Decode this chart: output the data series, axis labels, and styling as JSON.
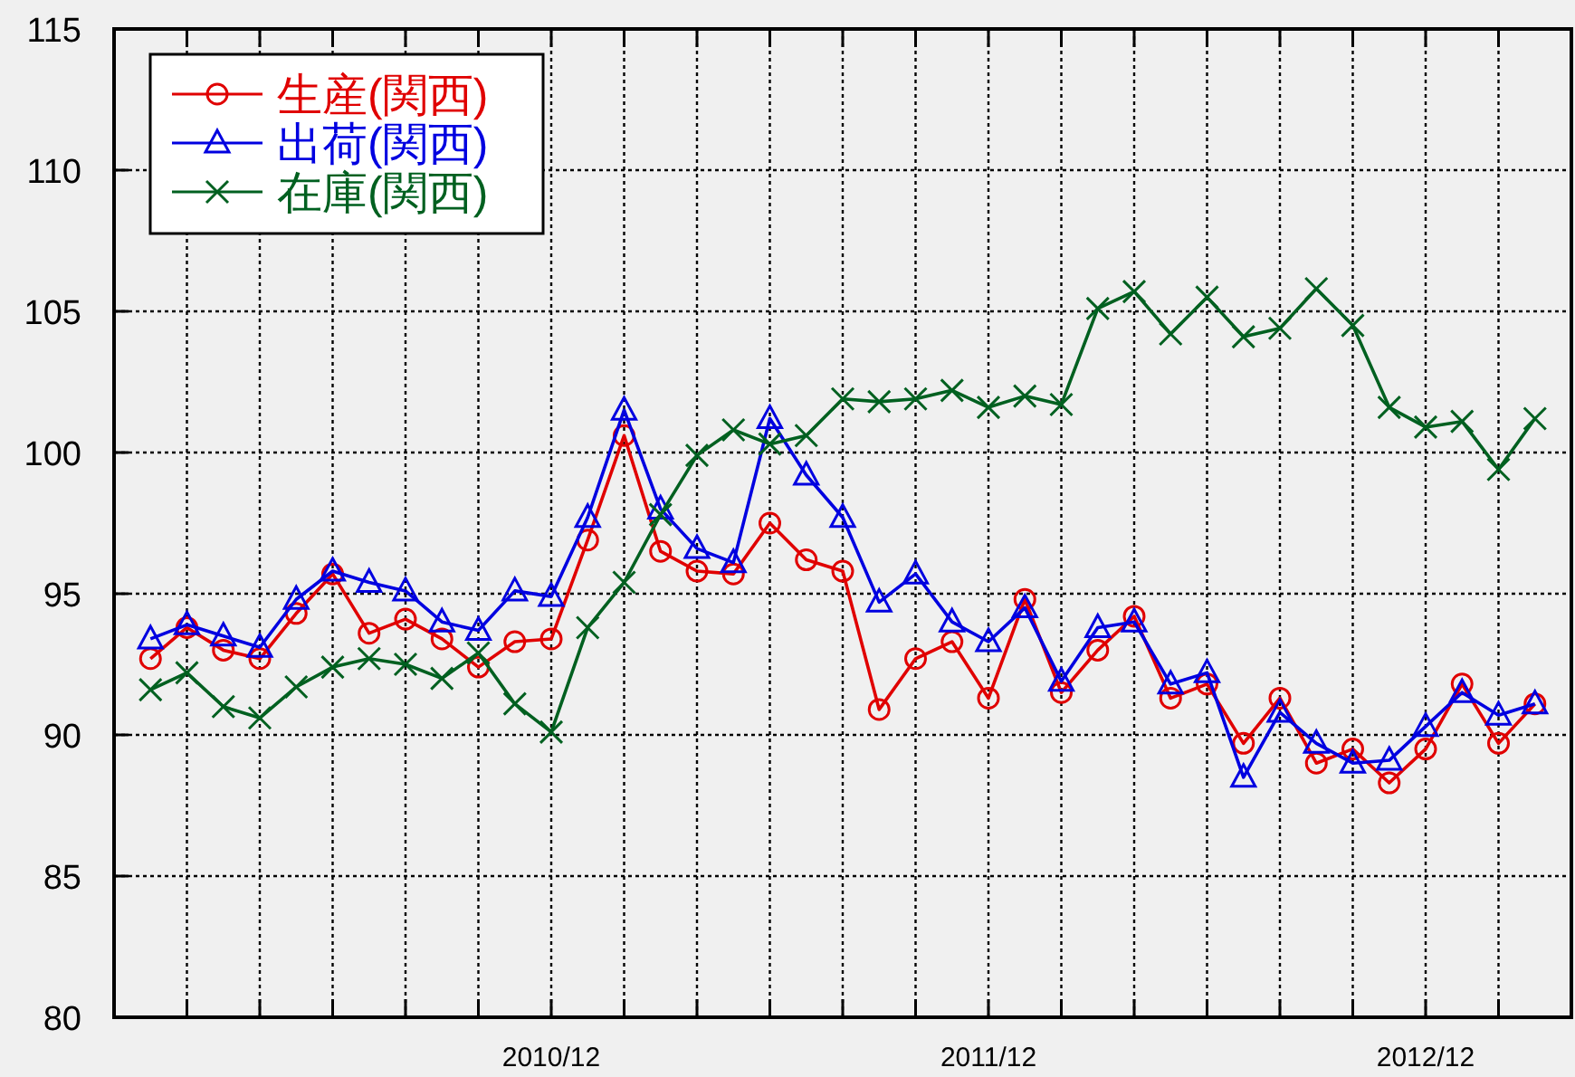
{
  "chart_data": {
    "type": "line",
    "legend": "top left",
    "grid": true,
    "line_style": "solid",
    "x": [
      "2010-01",
      "2010-02",
      "2010-03",
      "2010-04",
      "2010-05",
      "2010-06",
      "2010-07",
      "2010-08",
      "2010-09",
      "2010-10",
      "2010-11",
      "2010-12",
      "2011-01",
      "2011-02",
      "2011-03",
      "2011-04",
      "2011-05",
      "2011-06",
      "2011-07",
      "2011-08",
      "2011-09",
      "2011-10",
      "2011-11",
      "2011-12",
      "2012-01",
      "2012-02",
      "2012-03",
      "2012-04",
      "2012-05",
      "2012-06",
      "2012-07",
      "2012-08",
      "2012-09",
      "2012-10",
      "2012-11",
      "2012-12",
      "2013-01",
      "2013-02",
      "2013-03"
    ],
    "xlim": [
      "2009-12",
      "2013-04"
    ],
    "xticks": [
      {
        "value": "2010-02",
        "label": null
      },
      {
        "value": "2010-04",
        "label": null
      },
      {
        "value": "2010-06",
        "label": null
      },
      {
        "value": "2010-08",
        "label": null
      },
      {
        "value": "2010-10",
        "label": null
      },
      {
        "value": "2010-12",
        "label": "2010/12"
      },
      {
        "value": "2011-02",
        "label": null
      },
      {
        "value": "2011-04",
        "label": null
      },
      {
        "value": "2011-06",
        "label": null
      },
      {
        "value": "2011-08",
        "label": null
      },
      {
        "value": "2011-10",
        "label": null
      },
      {
        "value": "2011-12",
        "label": "2011/12"
      },
      {
        "value": "2012-02",
        "label": null
      },
      {
        "value": "2012-04",
        "label": null
      },
      {
        "value": "2012-06",
        "label": null
      },
      {
        "value": "2012-08",
        "label": null
      },
      {
        "value": "2012-10",
        "label": null
      },
      {
        "value": "2012-12",
        "label": "2012/12"
      },
      {
        "value": "2013-02",
        "label": null
      }
    ],
    "ylim": [
      80,
      115
    ],
    "yticks": [
      80,
      85,
      90,
      95,
      100,
      105,
      110,
      115
    ],
    "series": [
      {
        "name": "生産(関西)",
        "color": "#e00000",
        "marker": "circle",
        "values": [
          92.7,
          93.8,
          93.0,
          92.7,
          94.3,
          95.7,
          93.6,
          94.1,
          93.4,
          92.4,
          93.3,
          93.4,
          96.9,
          100.6,
          96.5,
          95.8,
          95.7,
          97.5,
          96.2,
          95.8,
          90.9,
          92.7,
          93.3,
          91.3,
          94.8,
          91.5,
          93.0,
          94.2,
          91.3,
          91.8,
          89.7,
          91.3,
          89.0,
          89.5,
          88.3,
          89.5,
          91.8,
          89.7,
          91.1
        ]
      },
      {
        "name": "出荷(関西)",
        "color": "#0000e0",
        "marker": "triangle",
        "values": [
          93.4,
          93.9,
          93.5,
          93.1,
          94.8,
          95.8,
          95.4,
          95.1,
          94.0,
          93.7,
          95.1,
          94.9,
          97.7,
          101.5,
          98.0,
          96.6,
          96.1,
          101.2,
          99.2,
          97.7,
          94.7,
          95.7,
          94.0,
          93.3,
          94.5,
          91.9,
          93.8,
          94.0,
          91.8,
          92.2,
          88.5,
          90.8,
          89.7,
          89.0,
          89.1,
          90.3,
          91.5,
          90.7,
          91.1
        ]
      },
      {
        "name": "在庫(関西)",
        "color": "#006020",
        "marker": "cross",
        "values": [
          91.6,
          92.2,
          91.0,
          90.6,
          91.7,
          92.4,
          92.7,
          92.5,
          92.0,
          92.9,
          91.1,
          90.1,
          93.8,
          95.4,
          97.8,
          99.9,
          100.8,
          100.3,
          100.6,
          101.9,
          101.8,
          101.9,
          102.2,
          101.6,
          102.0,
          101.7,
          105.1,
          105.7,
          104.2,
          105.5,
          104.1,
          104.4,
          105.8,
          104.5,
          101.6,
          100.9,
          101.1,
          99.4,
          101.2
        ]
      }
    ]
  }
}
